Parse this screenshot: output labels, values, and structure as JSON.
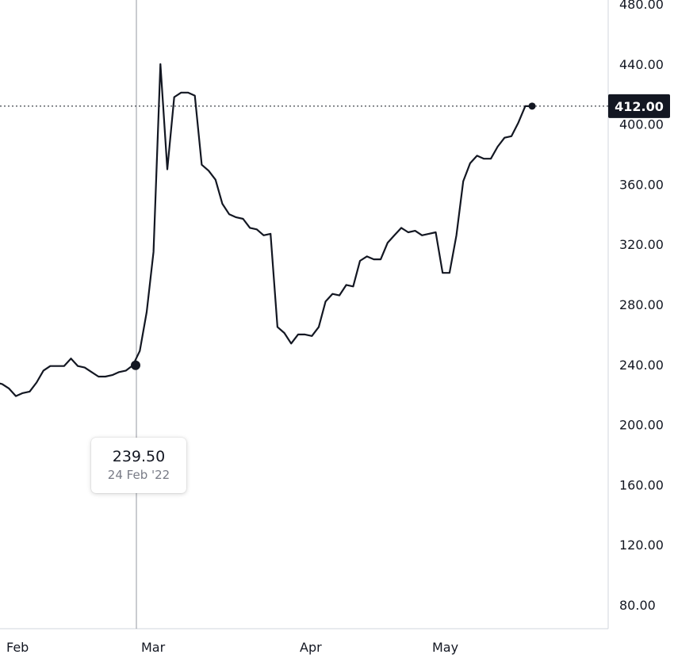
{
  "chart_data": {
    "type": "line",
    "title": "",
    "xlabel": "",
    "ylabel": "",
    "x_tick_labels": [
      "Feb",
      "Mar",
      "Apr",
      "May"
    ],
    "y_tick_labels": [
      "80.00",
      "120.00",
      "160.00",
      "200.00",
      "240.00",
      "280.00",
      "320.00",
      "360.00",
      "400.00",
      "440.00",
      "480.00"
    ],
    "y_ticks": [
      80,
      120,
      160,
      200,
      240,
      280,
      320,
      360,
      400,
      440,
      480
    ],
    "ylim": [
      70,
      482
    ],
    "grid": false,
    "last_value": 412,
    "last_value_label": "412.00",
    "colors": {
      "line": "#131722",
      "axis": "#d1d4dc",
      "badge": "#131722",
      "badge_text": "#ffffff"
    },
    "series": [
      {
        "values": [
          228,
          227,
          224,
          219,
          221,
          222,
          228,
          236,
          239,
          239,
          239,
          244,
          239,
          238,
          235,
          232,
          232,
          233,
          235,
          236,
          239.5,
          249,
          275,
          315,
          440,
          370,
          418,
          421,
          421,
          419,
          373,
          369,
          363,
          347,
          340,
          338,
          337,
          331,
          330,
          326,
          327,
          265,
          261,
          254,
          260,
          260,
          259,
          265,
          282,
          287,
          286,
          293,
          292,
          309,
          312,
          310,
          310,
          321,
          326,
          331,
          328,
          329,
          326,
          327,
          328,
          301,
          301,
          326,
          362,
          374,
          379,
          377,
          377,
          385,
          391,
          392,
          401,
          412,
          412
        ]
      }
    ]
  },
  "tooltip": {
    "value": "239.50",
    "date": "24 Feb '22"
  }
}
